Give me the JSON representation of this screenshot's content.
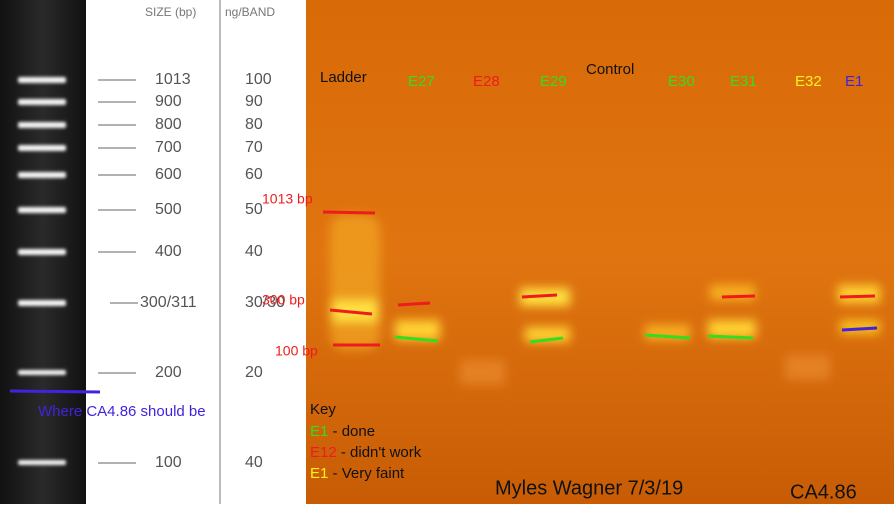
{
  "ladder": {
    "header_size": "SIZE (bp)",
    "header_ng": "ng/BAND",
    "rows": [
      {
        "size": "1013",
        "ng": "100"
      },
      {
        "size": "900",
        "ng": "90"
      },
      {
        "size": "800",
        "ng": "80"
      },
      {
        "size": "700",
        "ng": "70"
      },
      {
        "size": "600",
        "ng": "60"
      },
      {
        "size": "500",
        "ng": "50"
      },
      {
        "size": "400",
        "ng": "40"
      },
      {
        "size": "300/311",
        "ng": "30/30"
      },
      {
        "size": "200",
        "ng": "20"
      },
      {
        "size": "100",
        "ng": "40"
      }
    ],
    "note": "Where CA4.86 should be"
  },
  "lanes": [
    {
      "label": "Ladder",
      "color": "#111111"
    },
    {
      "label": "E27",
      "color": "#33dd22"
    },
    {
      "label": "E28",
      "color": "#ee1c1c"
    },
    {
      "label": "E29",
      "color": "#33dd22"
    },
    {
      "label": "Control",
      "color": "#111111"
    },
    {
      "label": "E30",
      "color": "#33dd22"
    },
    {
      "label": "E31",
      "color": "#33dd22"
    },
    {
      "label": "E32",
      "color": "#ffee22"
    },
    {
      "label": "E1",
      "color": "#4422dd"
    }
  ],
  "markers": [
    "1013 bp",
    "300 bp",
    "100 bp"
  ],
  "key": {
    "title": "Key",
    "entries": [
      {
        "code": "E1",
        "text": " - done",
        "color": "#33dd22"
      },
      {
        "code": "E12",
        "text": " - didn't work",
        "color": "#ee1c1c"
      },
      {
        "code": "E1",
        "text": " - Very faint",
        "color": "#ffee22"
      }
    ]
  },
  "author": "Myles Wagner 7/3/19",
  "sample": "CA4.86"
}
